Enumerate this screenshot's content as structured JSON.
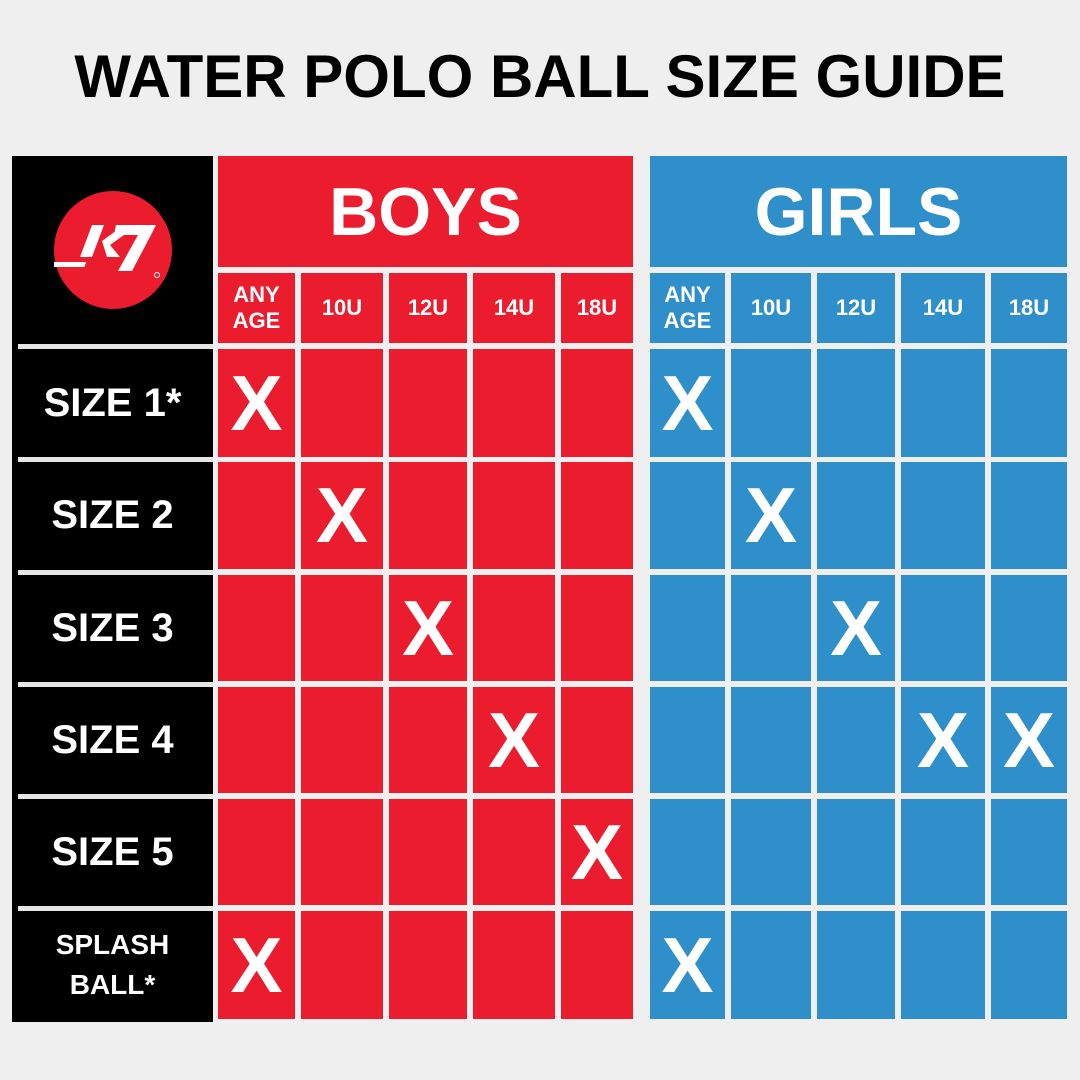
{
  "title": "WATER POLO BALL SIZE GUIDE",
  "logo": {
    "text": "K7",
    "icon": "k7-logo"
  },
  "colors": {
    "boys": "#ec1c2f",
    "girls": "#2e8fcb",
    "label_bg": "#000000",
    "background": "#efefef"
  },
  "groups": [
    {
      "label": "BOYS",
      "columns": [
        "ANY AGE",
        "10U",
        "12U",
        "14U",
        "18U"
      ]
    },
    {
      "label": "GIRLS",
      "columns": [
        "ANY AGE",
        "10U",
        "12U",
        "14U",
        "18U"
      ]
    }
  ],
  "mark": "X",
  "rows": [
    {
      "label": "SIZE 1*",
      "boys": [
        1,
        0,
        0,
        0,
        0
      ],
      "girls": [
        1,
        0,
        0,
        0,
        0
      ]
    },
    {
      "label": "SIZE 2",
      "boys": [
        0,
        1,
        0,
        0,
        0
      ],
      "girls": [
        0,
        1,
        0,
        0,
        0
      ]
    },
    {
      "label": "SIZE 3",
      "boys": [
        0,
        0,
        1,
        0,
        0
      ],
      "girls": [
        0,
        0,
        1,
        0,
        0
      ]
    },
    {
      "label": "SIZE 4",
      "boys": [
        0,
        0,
        0,
        1,
        0
      ],
      "girls": [
        0,
        0,
        0,
        1,
        1
      ]
    },
    {
      "label": "SIZE 5",
      "boys": [
        0,
        0,
        0,
        0,
        1
      ],
      "girls": [
        0,
        0,
        0,
        0,
        0
      ]
    },
    {
      "label": "SPLASH BALL*",
      "boys": [
        1,
        0,
        0,
        0,
        0
      ],
      "girls": [
        1,
        0,
        0,
        0,
        0
      ]
    }
  ]
}
